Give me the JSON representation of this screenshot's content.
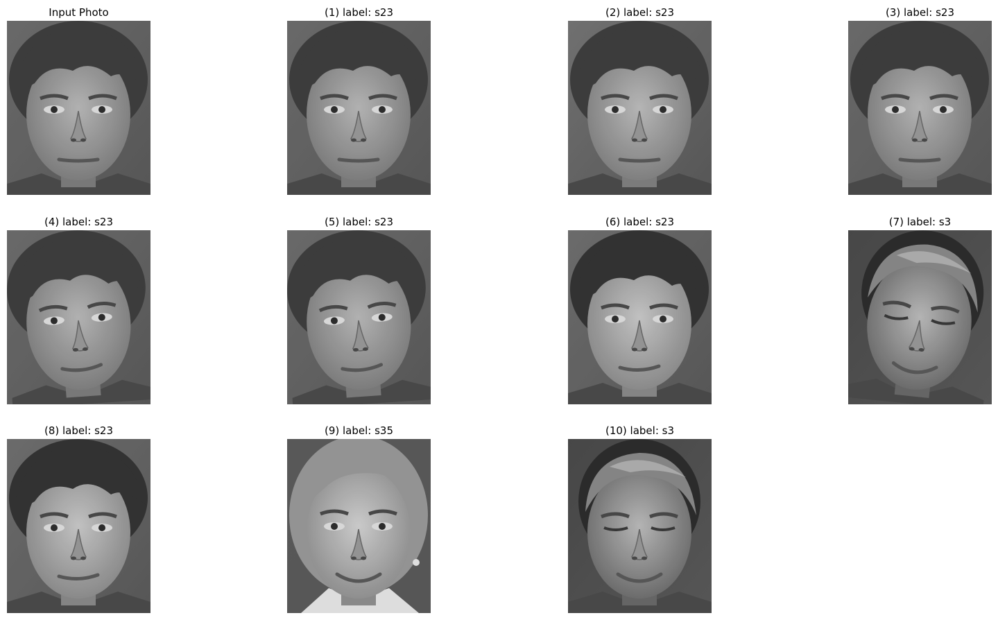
{
  "figure": {
    "panels": [
      {
        "title": "Input Photo",
        "face": "man-a",
        "variant": "input"
      },
      {
        "title": "(1)  label: s23",
        "face": "man-a",
        "variant": "neutral"
      },
      {
        "title": "(2)  label: s23",
        "face": "man-a",
        "variant": "neutral-sharp"
      },
      {
        "title": "(3)  label: s23",
        "face": "man-a",
        "variant": "neutral"
      },
      {
        "title": "(4)  label: s23",
        "face": "man-a",
        "variant": "tilt"
      },
      {
        "title": "(5)  label: s23",
        "face": "man-a",
        "variant": "tilt"
      },
      {
        "title": "(6)  label: s23",
        "face": "man-a",
        "variant": "bright"
      },
      {
        "title": "(7)  label: s3",
        "face": "man-b",
        "variant": "look-down"
      },
      {
        "title": "(8)  label: s23",
        "face": "man-a",
        "variant": "bright"
      },
      {
        "title": "(9)  label: s35",
        "face": "woman",
        "variant": "smile"
      },
      {
        "title": "(10)  label: s3",
        "face": "man-b",
        "variant": "slight-smile"
      }
    ]
  }
}
